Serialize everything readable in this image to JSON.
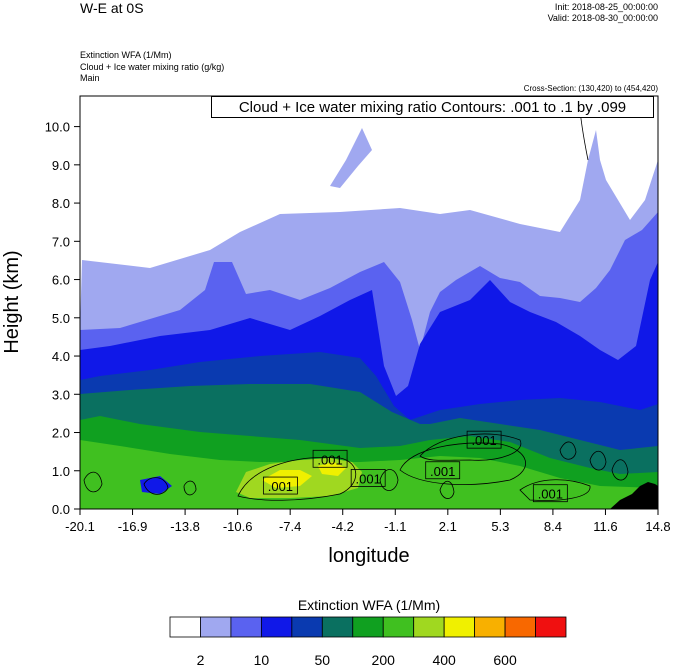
{
  "header": {
    "title": "W-E at 0S",
    "init": "Init: 2018-08-25_00:00:00",
    "valid": "Valid: 2018-08-30_00:00:00",
    "variables": [
      "Extinction WFA   (1/Mm)",
      "Cloud + Ice water mixing ratio   (g/kg)",
      "Main"
    ],
    "cross_section": "Cross-Section: (130,420) to (454,420)",
    "contour_info": "Cloud + Ice water mixing ratio Contours: .001 to .1 by .099"
  },
  "chart_data": {
    "type": "heatmap",
    "xlabel": "longitude",
    "ylabel": "Height (km)",
    "xlim": [
      -20.1,
      14.8
    ],
    "ylim": [
      0,
      10.8
    ],
    "x_ticks": [
      "-20.1",
      "-16.9",
      "-13.8",
      "-10.6",
      "-7.4",
      "-4.2",
      "-1.1",
      "2.1",
      "5.3",
      "8.4",
      "11.6",
      "14.8"
    ],
    "y_ticks": [
      "0.0",
      "1.0",
      "2.0",
      "3.0",
      "4.0",
      "5.0",
      "6.0",
      "7.0",
      "8.0",
      "9.0",
      "10.0"
    ],
    "y_tick_values": [
      0,
      1,
      2,
      3,
      4,
      5,
      6,
      7,
      8,
      9,
      10
    ],
    "contour_labels": [
      {
        "text": ".001",
        "lon": -5.0,
        "h": 1.3
      },
      {
        "text": ".001",
        "lon": -8.0,
        "h": 0.6
      },
      {
        "text": ".001",
        "lon": -2.7,
        "h": 0.8
      },
      {
        "text": ".001",
        "lon": 1.8,
        "h": 1.0
      },
      {
        "text": ".001",
        "lon": 4.3,
        "h": 1.8
      },
      {
        "text": ".001",
        "lon": 8.3,
        "h": 0.4
      }
    ],
    "colorbar": {
      "title": "Extinction WFA  (1/Mm)",
      "labels": [
        "2",
        "10",
        "50",
        "200",
        "400",
        "600"
      ],
      "colors": [
        "#ffffff",
        "#a0a8f0",
        "#5a62f0",
        "#1018e8",
        "#0a3ab0",
        "#0a7060",
        "#10a020",
        "#40c020",
        "#a0d820",
        "#f0f000",
        "#f8b000",
        "#f86800",
        "#f01010"
      ]
    },
    "grid": false
  }
}
